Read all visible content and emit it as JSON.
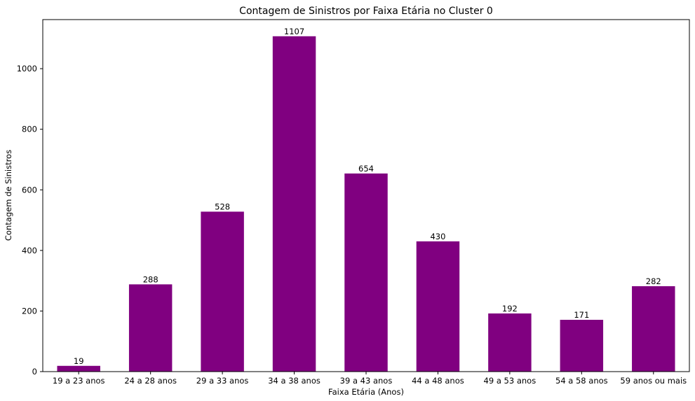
{
  "chart_data": {
    "type": "bar",
    "title": "Contagem de Sinistros por Faixa Etária no Cluster 0",
    "xlabel": "Faixa Etária (Anos)",
    "ylabel": "Contagem de Sinistros",
    "categories": [
      "19 a 23 anos",
      "24 a 28 anos",
      "29 a 33 anos",
      "34 a 38 anos",
      "39 a 43 anos",
      "44 a 48 anos",
      "49 a 53 anos",
      "54 a 58 anos",
      "59 anos ou mais"
    ],
    "values": [
      19,
      288,
      528,
      1107,
      654,
      430,
      192,
      171,
      282
    ],
    "ylim": [
      0,
      1162
    ],
    "yticks": [
      0,
      200,
      400,
      600,
      800,
      1000
    ],
    "bar_color": "#800080",
    "grid": false,
    "legend": "none"
  }
}
